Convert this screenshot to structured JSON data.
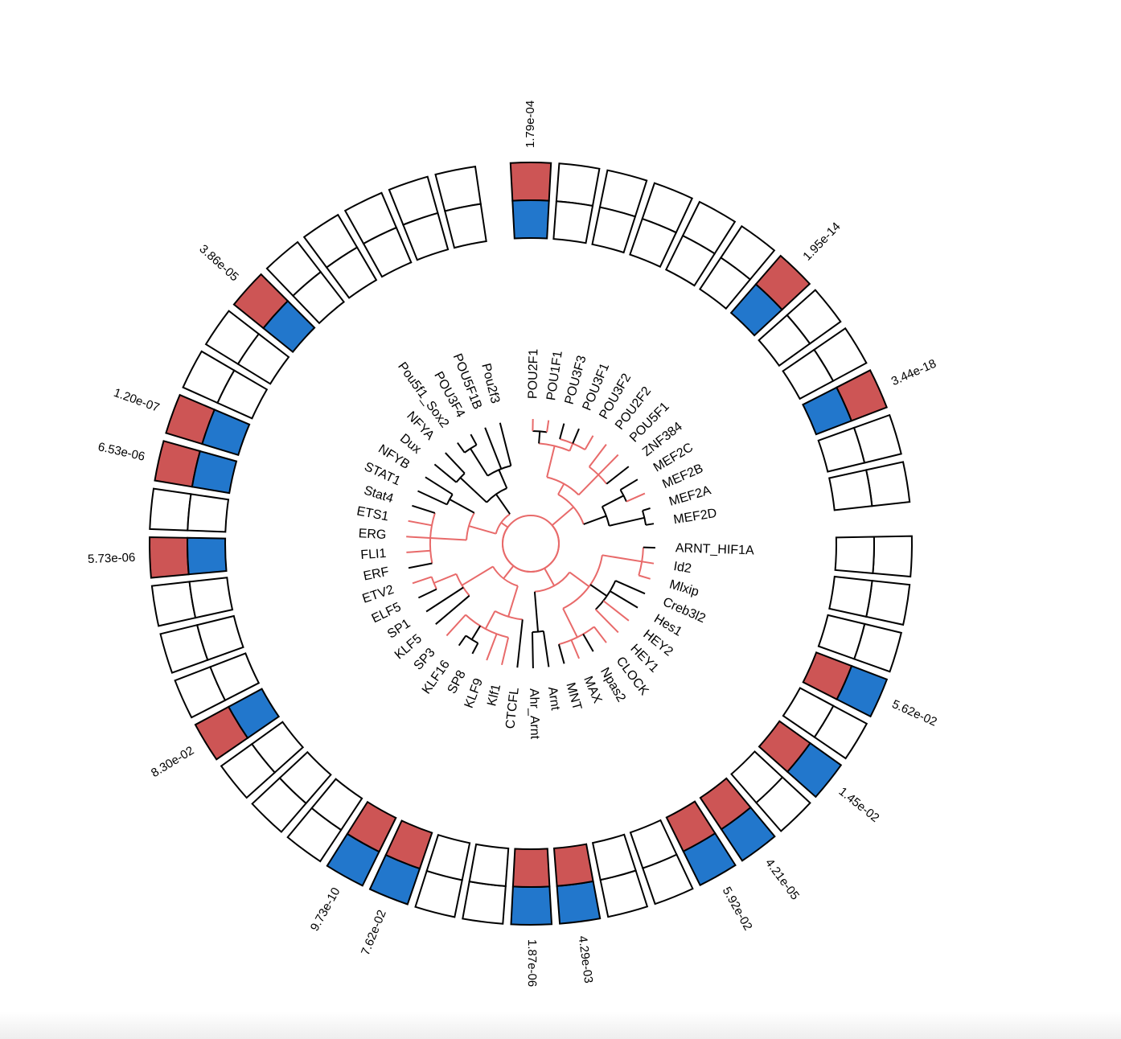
{
  "colors": {
    "enriched_red": "#CD5555",
    "enriched_blue": "#2277CC",
    "highlight_branch": "#E86A6A",
    "default_branch": "#000000",
    "empty_fill": "#FFFFFF",
    "stroke": "#000000"
  },
  "labels": [
    "POU2F1",
    "POU1F1",
    "POU3F3",
    "POU3F1",
    "POU3F2",
    "POU2F2",
    "POU5F1",
    "ZNF384",
    "MEF2C",
    "MEF2B",
    "MEF2A",
    "MEF2D",
    "ARNT_HIF1A",
    "Id2",
    "Mlxip",
    "Creb3l2",
    "Hes1",
    "HEY2",
    "HEY1",
    "CLOCK",
    "Npas2",
    "MAX",
    "MNT",
    "Arnt",
    "Ahr_Arnt",
    "CTCFL",
    "Klf1",
    "KLF9",
    "SP8",
    "KLF16",
    "SP3",
    "KLF5",
    "SP1",
    "ELF5",
    "ETV2",
    "ERF",
    "FLI1",
    "ERG",
    "ETS1",
    "Stat4",
    "STAT1",
    "NFYB",
    "Dux",
    "NFYA",
    "Pou5f1_Sox2",
    "POU3F4",
    "POU5F1B",
    "Pou2f3"
  ],
  "segments": [
    {
      "pvalue": "1.79e-04"
    },
    {
      "pvalue": ""
    },
    {
      "pvalue": ""
    },
    {
      "pvalue": ""
    },
    {
      "pvalue": ""
    },
    {
      "pvalue": ""
    },
    {
      "pvalue": "1.95e-14"
    },
    {
      "pvalue": ""
    },
    {
      "pvalue": ""
    },
    {
      "pvalue": "3.44e-18"
    },
    {
      "pvalue": ""
    },
    {
      "pvalue": ""
    },
    {
      "pvalue": ""
    },
    {
      "pvalue": ""
    },
    {
      "pvalue": ""
    },
    {
      "pvalue": "5.62e-02"
    },
    {
      "pvalue": ""
    },
    {
      "pvalue": "1.45e-02"
    },
    {
      "pvalue": ""
    },
    {
      "pvalue": "4.21e-05"
    },
    {
      "pvalue": "5.92e-02"
    },
    {
      "pvalue": ""
    },
    {
      "pvalue": ""
    },
    {
      "pvalue": "4.29e-03"
    },
    {
      "pvalue": "1.87e-06"
    },
    {
      "pvalue": ""
    },
    {
      "pvalue": ""
    },
    {
      "pvalue": "7.62e-02"
    },
    {
      "pvalue": "9.73e-10"
    },
    {
      "pvalue": ""
    },
    {
      "pvalue": ""
    },
    {
      "pvalue": ""
    },
    {
      "pvalue": "8.30e-02"
    },
    {
      "pvalue": ""
    },
    {
      "pvalue": ""
    },
    {
      "pvalue": ""
    },
    {
      "pvalue": "5.73e-06"
    },
    {
      "pvalue": ""
    },
    {
      "pvalue": "6.53e-06"
    },
    {
      "pvalue": "1.20e-07"
    },
    {
      "pvalue": ""
    },
    {
      "pvalue": ""
    },
    {
      "pvalue": "3.86e-05"
    },
    {
      "pvalue": ""
    },
    {
      "pvalue": ""
    },
    {
      "pvalue": ""
    },
    {
      "pvalue": ""
    },
    {
      "pvalue": ""
    }
  ]
}
